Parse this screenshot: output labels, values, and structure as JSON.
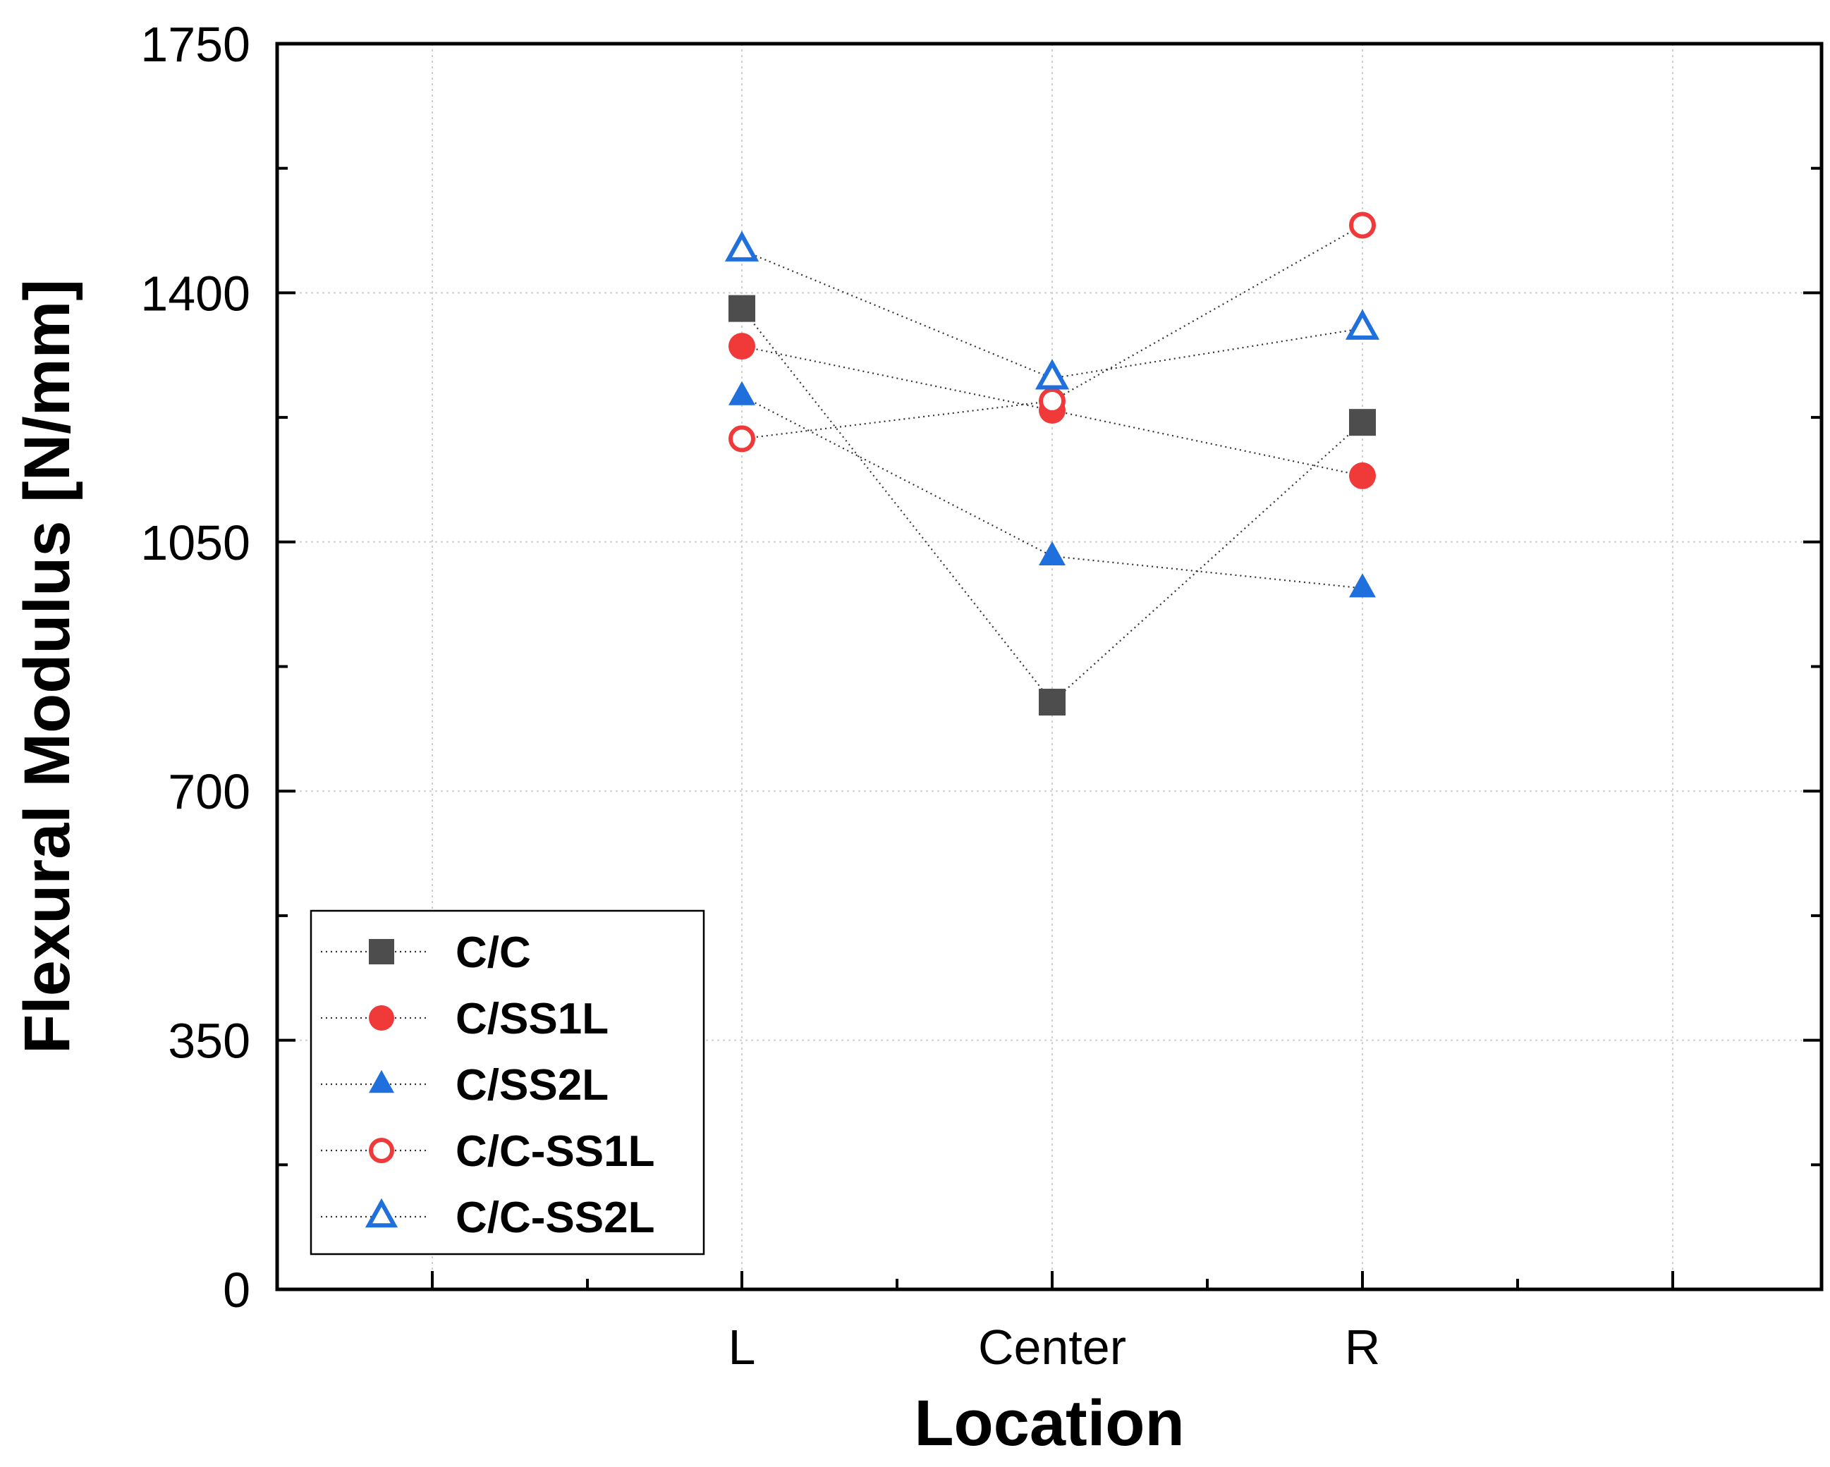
{
  "chart_data": {
    "type": "line",
    "categories": [
      "L",
      "Center",
      "R"
    ],
    "xlabel": "Location",
    "ylabel": "Flexural Modulus [N/mm]",
    "ylim": [
      0,
      1750
    ],
    "yticks": [
      0,
      350,
      700,
      1050,
      1400,
      1750
    ],
    "ytick_labels": [
      "0",
      "350",
      "700",
      "1050",
      "1400",
      "1750"
    ],
    "grid": true,
    "legend_position": "bottom-left",
    "series": [
      {
        "name": "C/C",
        "values": [
          1378,
          825,
          1218
        ],
        "marker": "square",
        "filled": true,
        "color": "#4d4d4d"
      },
      {
        "name": "C/SS1L",
        "values": [
          1325,
          1235,
          1143
        ],
        "marker": "circle",
        "filled": true,
        "color": "#f03a3a"
      },
      {
        "name": "C/SS2L",
        "values": [
          1255,
          1030,
          985
        ],
        "marker": "triangle",
        "filled": true,
        "color": "#1f6fdc"
      },
      {
        "name": "C/C-SS1L",
        "values": [
          1195,
          1248,
          1495
        ],
        "marker": "circle",
        "filled": false,
        "color": "#f03a3a"
      },
      {
        "name": "C/C-SS2L",
        "values": [
          1460,
          1280,
          1350
        ],
        "marker": "triangle",
        "filled": false,
        "color": "#1f6fdc"
      }
    ]
  }
}
